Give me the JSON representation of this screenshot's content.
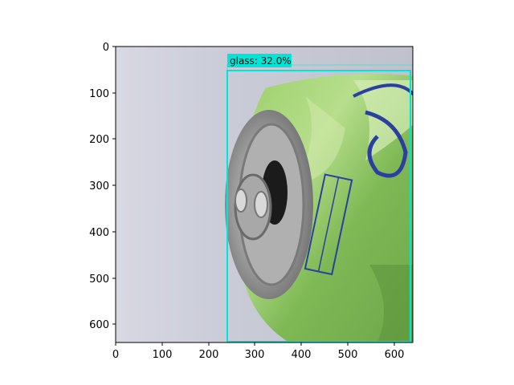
{
  "plot": {
    "x_ticks": [
      "0",
      "100",
      "200",
      "300",
      "400",
      "500",
      "600"
    ],
    "y_ticks": [
      "0",
      "100",
      "200",
      "300",
      "400",
      "500",
      "600"
    ]
  },
  "detection": {
    "label": "glass: 32.0%",
    "color": "#00e5d8"
  },
  "image_subject": "crushed-green-soda-can"
}
